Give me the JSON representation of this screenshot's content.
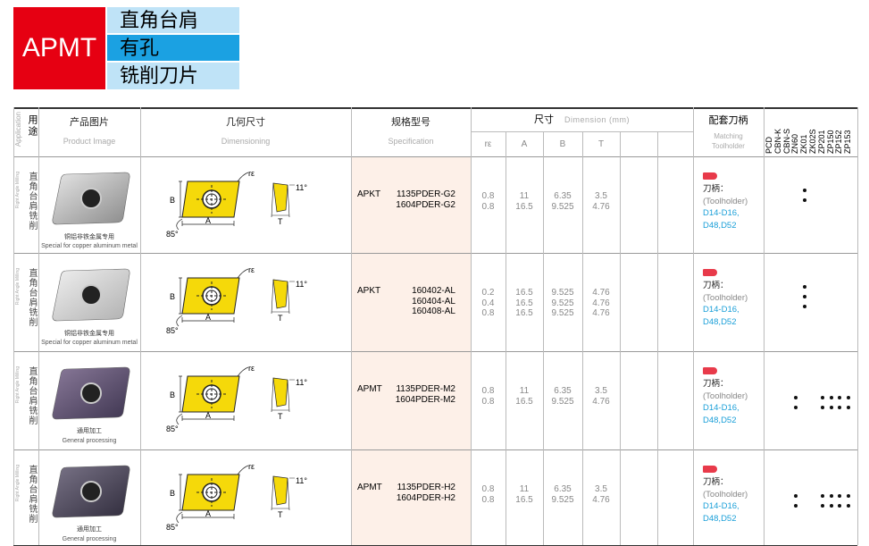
{
  "header": {
    "code": "APMT",
    "lines": [
      "直角台肩",
      "有孔",
      "铣削刀片"
    ]
  },
  "table": {
    "columns": {
      "application": {
        "zh": "用途",
        "en": "Application"
      },
      "image": {
        "zh": "产品图片",
        "en": "Product Image"
      },
      "geometry": {
        "zh": "几何尺寸",
        "en": "Dimensioning"
      },
      "spec": {
        "zh": "规格型号",
        "en": "Specification"
      },
      "dimension": {
        "zh": "尺寸",
        "en": "Dimension (mm)",
        "sub": [
          "rε",
          "A",
          "B",
          "T"
        ]
      },
      "toolholder": {
        "zh": "配套刀柄",
        "en": [
          "Matching",
          "Toolholder"
        ]
      }
    },
    "grades": [
      "PCD",
      "CBN-K",
      "CBN-S",
      "ZN60",
      "ZK01",
      "ZK02S",
      "ZP201",
      "ZP150",
      "ZP152",
      "ZP153"
    ],
    "diagram_labels": {
      "B": "B",
      "A": "A",
      "angle": "85°",
      "radius": "rε",
      "clearance": "11°",
      "T": "T"
    },
    "rows": [
      {
        "application": "直角台肩铣削",
        "application_en": "Right Angle Milling",
        "caption_zh": "铜铝非铁金属专用",
        "caption_en": "Special for copper aluminum metal",
        "spec_prefix": "APKT",
        "specs": [
          "1135PDER-G2",
          "1604PDER-G2"
        ],
        "r": [
          0.8,
          0.8
        ],
        "A": [
          11,
          16.5
        ],
        "B": [
          6.35,
          9.525
        ],
        "T": [
          3.5,
          4.76
        ],
        "toolholder": [
          "刀柄：",
          "(Toolholder)",
          "D14-D16,",
          "D48,D52"
        ]
      },
      {
        "application": "直角台肩铣削",
        "application_en": "Right Angle Milling",
        "caption_zh": "铜铝非铁金属专用",
        "caption_en": "Special for copper aluminum metal",
        "spec_prefix": "APKT",
        "specs": [
          "160402-AL",
          "160404-AL",
          "160408-AL"
        ],
        "r": [
          0.2,
          0.4,
          0.8
        ],
        "A": [
          16.5,
          16.5,
          16.5
        ],
        "B": [
          9.525,
          9.525,
          9.525
        ],
        "T": [
          4.76,
          4.76,
          4.76
        ],
        "toolholder": [
          "刀柄：",
          "(Toolholder)",
          "D14-D16,",
          "D48,D52"
        ]
      },
      {
        "application": "直角台肩铣削",
        "application_en": "Right Angle Milling",
        "caption_zh": "通用加工",
        "caption_en": "General processing",
        "spec_prefix": "APMT",
        "specs": [
          "1135PDER-M2",
          "1604PDER-M2"
        ],
        "r": [
          0.8,
          0.8
        ],
        "A": [
          11,
          16.5
        ],
        "B": [
          6.35,
          9.525
        ],
        "T": [
          3.5,
          4.76
        ],
        "toolholder": [
          "刀柄：",
          "(Toolholder)",
          "D14-D16,",
          "D48,D52"
        ]
      },
      {
        "application": "直角台肩铣削",
        "application_en": "Right Angle Milling",
        "caption_zh": "通用加工",
        "caption_en": "General processing",
        "spec_prefix": "APMT",
        "specs": [
          "1135PDER-H2",
          "1604PDER-H2"
        ],
        "r": [
          0.8,
          0.8
        ],
        "A": [
          11,
          16.5
        ],
        "B": [
          6.35,
          9.525
        ],
        "T": [
          3.5,
          4.76
        ],
        "toolholder": [
          "刀柄：",
          "(Toolholder)",
          "D14-D16,",
          "D48,D52"
        ]
      }
    ]
  }
}
